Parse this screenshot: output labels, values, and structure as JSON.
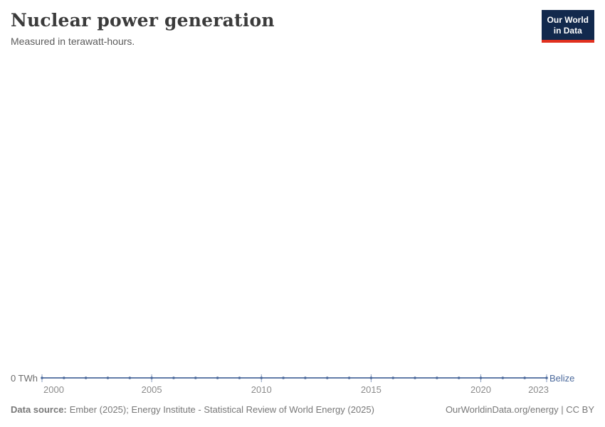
{
  "header": {
    "title": "Nuclear power generation",
    "subtitle": "Measured in terawatt-hours.",
    "logo": {
      "line1": "Our World",
      "line2": "in Data",
      "bg_color": "#12294d",
      "accent_color": "#e0301f"
    }
  },
  "chart_data": {
    "type": "line",
    "title": "Nuclear power generation",
    "ylabel": "terawatt-hours",
    "x": [
      2000,
      2001,
      2002,
      2003,
      2004,
      2005,
      2006,
      2007,
      2008,
      2009,
      2010,
      2011,
      2012,
      2013,
      2014,
      2015,
      2016,
      2017,
      2018,
      2019,
      2020,
      2021,
      2022,
      2023
    ],
    "series": [
      {
        "name": "Belize",
        "color": "#4C6A9C",
        "values": [
          0,
          0,
          0,
          0,
          0,
          0,
          0,
          0,
          0,
          0,
          0,
          0,
          0,
          0,
          0,
          0,
          0,
          0,
          0,
          0,
          0,
          0,
          0,
          0
        ]
      }
    ],
    "x_ticks": [
      2000,
      2005,
      2010,
      2015,
      2020,
      2023
    ],
    "xlim": [
      2000,
      2023
    ],
    "ylim": [
      0,
      0
    ],
    "y_zero_label": "0 TWh",
    "grid": false,
    "legend": "end-of-line-label",
    "tick_label_color": "#8b8b8b"
  },
  "footer": {
    "datasource_label": "Data source:",
    "datasource_text": "Ember (2025); Energy Institute - Statistical Review of World Energy (2025)",
    "attribution": "OurWorldinData.org/energy | CC BY"
  }
}
